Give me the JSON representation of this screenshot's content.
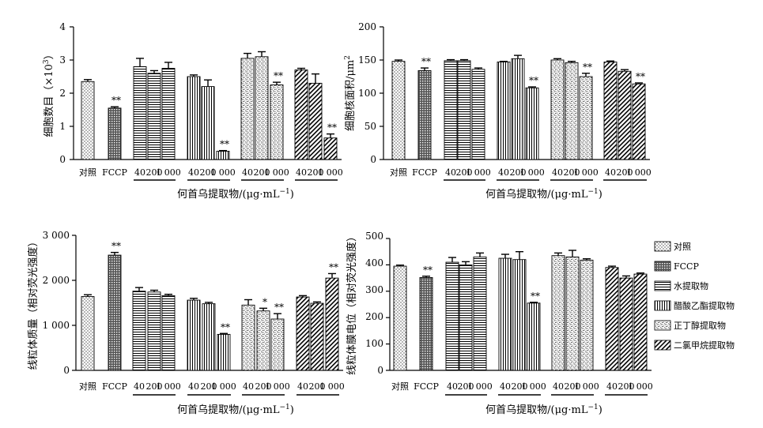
{
  "chart_data": [
    {
      "type": "bar",
      "ylabel_main": "细胞数目",
      "ylabel_unit": "（×10",
      "ylabel_sup": "3",
      "ylabel_end": "）",
      "ylim": [
        0,
        4
      ],
      "yticks": [
        "0",
        "1",
        "2",
        "3",
        "4"
      ],
      "xlabel": "何首乌提取物/(μg·mL",
      "xlabel_sup": "−1",
      "xlabel_end": ")",
      "bars": [
        {
          "series": 0,
          "value": 2.35,
          "err": 0.06,
          "sig": ""
        },
        {
          "series": 1,
          "value": 1.55,
          "err": 0.04,
          "sig": "**"
        },
        {
          "series": 2,
          "value": 2.8,
          "err": 0.25,
          "sig": ""
        },
        {
          "series": 2,
          "value": 2.6,
          "err": 0.08,
          "sig": ""
        },
        {
          "series": 2,
          "value": 2.75,
          "err": 0.18,
          "sig": ""
        },
        {
          "series": 3,
          "value": 2.5,
          "err": 0.05,
          "sig": ""
        },
        {
          "series": 3,
          "value": 2.2,
          "err": 0.2,
          "sig": ""
        },
        {
          "series": 3,
          "value": 0.25,
          "err": 0.02,
          "sig": "**"
        },
        {
          "series": 4,
          "value": 3.05,
          "err": 0.15,
          "sig": ""
        },
        {
          "series": 4,
          "value": 3.1,
          "err": 0.15,
          "sig": ""
        },
        {
          "series": 4,
          "value": 2.25,
          "err": 0.08,
          "sig": "**"
        },
        {
          "series": 5,
          "value": 2.7,
          "err": 0.05,
          "sig": ""
        },
        {
          "series": 5,
          "value": 2.3,
          "err": 0.28,
          "sig": ""
        },
        {
          "series": 5,
          "value": 0.65,
          "err": 0.12,
          "sig": "**"
        }
      ]
    },
    {
      "type": "bar",
      "ylabel_main": "细胞核面积/μm",
      "ylabel_unit": "",
      "ylabel_sup": "2",
      "ylabel_end": "",
      "ylim": [
        0,
        200
      ],
      "yticks": [
        "0",
        "50",
        "100",
        "150",
        "200"
      ],
      "xlabel": "何首乌提取物/(μg·mL",
      "xlabel_sup": "−1",
      "xlabel_end": ")",
      "bars": [
        {
          "series": 0,
          "value": 148,
          "err": 2,
          "sig": ""
        },
        {
          "series": 1,
          "value": 134,
          "err": 4,
          "sig": "**"
        },
        {
          "series": 2,
          "value": 149,
          "err": 1.5,
          "sig": ""
        },
        {
          "series": 2,
          "value": 149,
          "err": 1.5,
          "sig": ""
        },
        {
          "series": 2,
          "value": 136,
          "err": 2,
          "sig": ""
        },
        {
          "series": 3,
          "value": 147,
          "err": 1,
          "sig": ""
        },
        {
          "series": 3,
          "value": 152,
          "err": 5,
          "sig": ""
        },
        {
          "series": 3,
          "value": 108,
          "err": 1.5,
          "sig": "**"
        },
        {
          "series": 4,
          "value": 150,
          "err": 2,
          "sig": ""
        },
        {
          "series": 4,
          "value": 146,
          "err": 2,
          "sig": ""
        },
        {
          "series": 4,
          "value": 125,
          "err": 5,
          "sig": "**"
        },
        {
          "series": 5,
          "value": 147,
          "err": 1.5,
          "sig": ""
        },
        {
          "series": 5,
          "value": 133,
          "err": 2.5,
          "sig": ""
        },
        {
          "series": 5,
          "value": 114,
          "err": 1.5,
          "sig": "**"
        }
      ]
    },
    {
      "type": "bar",
      "ylabel_main": "线粒体质量（相对荧光强度）",
      "ylabel_unit": "",
      "ylabel_sup": "",
      "ylabel_end": "",
      "ylim": [
        0,
        3000
      ],
      "yticks": [
        "0",
        "1 000",
        "2 000",
        "3 000"
      ],
      "xlabel": "何首乌提取物/(μg·mL",
      "xlabel_sup": "−1",
      "xlabel_end": ")",
      "bars": [
        {
          "series": 0,
          "value": 1640,
          "err": 40,
          "sig": ""
        },
        {
          "series": 1,
          "value": 2560,
          "err": 60,
          "sig": "**"
        },
        {
          "series": 2,
          "value": 1760,
          "err": 80,
          "sig": ""
        },
        {
          "series": 2,
          "value": 1740,
          "err": 40,
          "sig": ""
        },
        {
          "series": 2,
          "value": 1660,
          "err": 30,
          "sig": ""
        },
        {
          "series": 3,
          "value": 1560,
          "err": 40,
          "sig": ""
        },
        {
          "series": 3,
          "value": 1480,
          "err": 30,
          "sig": ""
        },
        {
          "series": 3,
          "value": 800,
          "err": 20,
          "sig": "**"
        },
        {
          "series": 4,
          "value": 1450,
          "err": 120,
          "sig": ""
        },
        {
          "series": 4,
          "value": 1320,
          "err": 60,
          "sig": "*"
        },
        {
          "series": 4,
          "value": 1140,
          "err": 120,
          "sig": "**"
        },
        {
          "series": 5,
          "value": 1630,
          "err": 30,
          "sig": ""
        },
        {
          "series": 5,
          "value": 1490,
          "err": 30,
          "sig": ""
        },
        {
          "series": 5,
          "value": 2050,
          "err": 100,
          "sig": "**"
        }
      ]
    },
    {
      "type": "bar",
      "ylabel_main": "线粒体膜电位（相对荧光强度）",
      "ylabel_unit": "",
      "ylabel_sup": "",
      "ylabel_end": "",
      "ylim": [
        0,
        500
      ],
      "yticks": [
        "0",
        "100",
        "200",
        "300",
        "400",
        "500"
      ],
      "xlabel": "何首乌提取物/(μg·mL",
      "xlabel_sup": "−1",
      "xlabel_end": ")",
      "bars": [
        {
          "series": 0,
          "value": 395,
          "err": 4,
          "sig": ""
        },
        {
          "series": 1,
          "value": 352,
          "err": 5,
          "sig": "**"
        },
        {
          "series": 2,
          "value": 410,
          "err": 18,
          "sig": ""
        },
        {
          "series": 2,
          "value": 400,
          "err": 12,
          "sig": ""
        },
        {
          "series": 2,
          "value": 430,
          "err": 15,
          "sig": ""
        },
        {
          "series": 3,
          "value": 425,
          "err": 15,
          "sig": ""
        },
        {
          "series": 3,
          "value": 420,
          "err": 30,
          "sig": ""
        },
        {
          "series": 3,
          "value": 255,
          "err": 3,
          "sig": "**"
        },
        {
          "series": 4,
          "value": 435,
          "err": 10,
          "sig": ""
        },
        {
          "series": 4,
          "value": 430,
          "err": 25,
          "sig": ""
        },
        {
          "series": 4,
          "value": 418,
          "err": 5,
          "sig": ""
        },
        {
          "series": 5,
          "value": 390,
          "err": 5,
          "sig": ""
        },
        {
          "series": 5,
          "value": 350,
          "err": 8,
          "sig": ""
        },
        {
          "series": 5,
          "value": 365,
          "err": 4,
          "sig": ""
        }
      ]
    }
  ],
  "categories": {
    "control": "对照",
    "fccp": "FCCP",
    "doses_tl": [
      "40",
      "200",
      "1 000"
    ],
    "doses_tr": [
      "40",
      "200",
      "1 000"
    ],
    "doses_bl": [
      "40",
      "200",
      "1 000"
    ],
    "doses_br": [
      "40",
      "200",
      "1 000"
    ]
  },
  "legend": [
    {
      "label": "对照",
      "pattern": "dots"
    },
    {
      "label": "FCCP",
      "pattern": "grid"
    },
    {
      "label": "水提取物",
      "pattern": "hlines"
    },
    {
      "label": "醋酸乙酯提取物",
      "pattern": "vlines"
    },
    {
      "label": "正丁醇提取物",
      "pattern": "speckle"
    },
    {
      "label": "二氯甲烷提取物",
      "pattern": "diag"
    }
  ],
  "colors": {
    "ink": "#000000",
    "background": "#ffffff"
  }
}
